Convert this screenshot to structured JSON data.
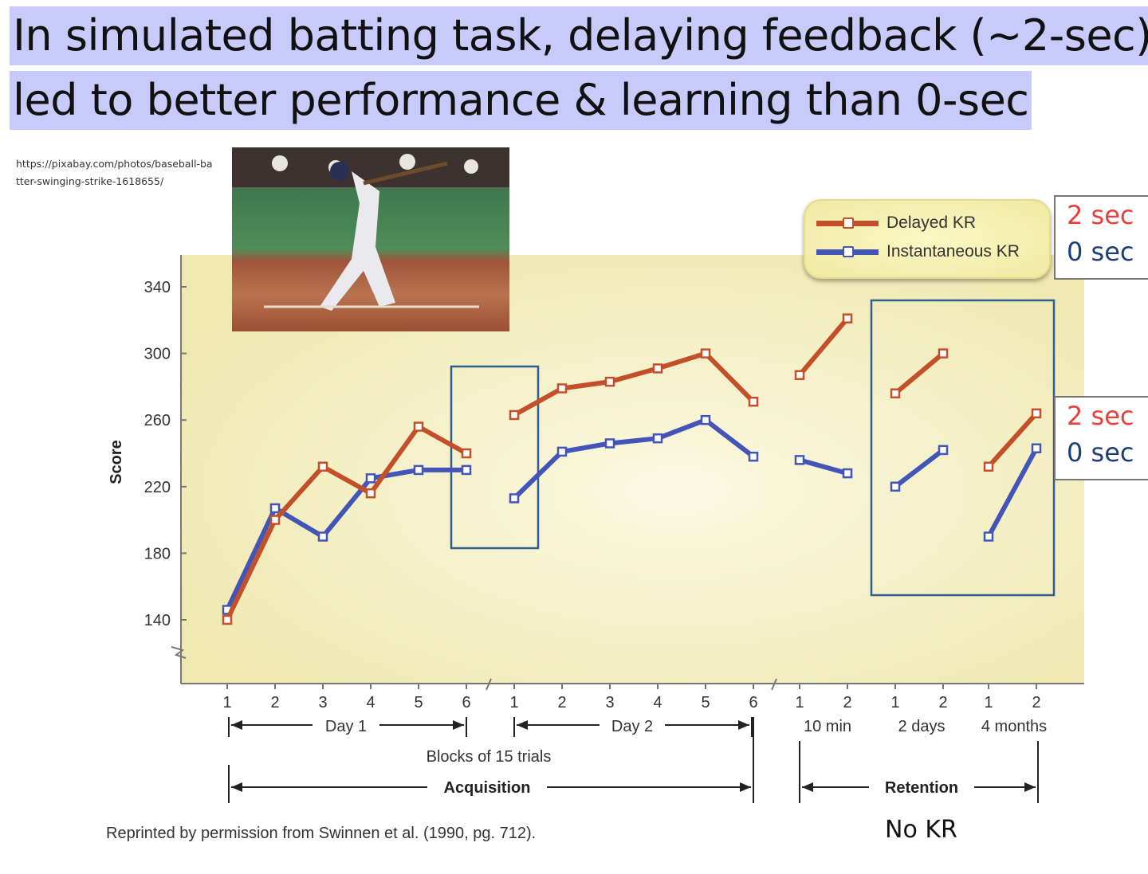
{
  "slide": {
    "title_line1": "In simulated batting task, delaying feedback (~2-sec)",
    "title_line2": "led to better performance & learning than 0-sec",
    "photo_source": "https://pixabay.com/photos/baseball-batter-swinging-strike-1618655/",
    "photo_alt": "baseball batter swinging",
    "annotation_top": {
      "line1": "2 sec",
      "line2": "0 sec"
    },
    "annotation_bottom": {
      "line1": "2 sec",
      "line2": "0 sec"
    },
    "no_kr": "No KR",
    "credit": "Reprinted by permission from Swinnen et al. (1990, pg. 712)."
  },
  "colors": {
    "delayed": "#c4502a",
    "instant": "#4455b8",
    "box": "#2f5f8f",
    "plot_bg": "#f4efbf",
    "title_highlight": "#c8cbfa",
    "annot_red": "#e8403a",
    "annot_blue": "#1f3f73"
  },
  "chart_data": {
    "type": "line",
    "ylabel": "Score",
    "ylim": [
      120,
      360
    ],
    "yticks": [
      140,
      180,
      220,
      260,
      300,
      340
    ],
    "x_tick_labels": [
      "1",
      "2",
      "3",
      "4",
      "5",
      "6",
      "1",
      "2",
      "3",
      "4",
      "5",
      "6",
      "1",
      "2",
      "1",
      "2",
      "1",
      "2"
    ],
    "groups": [
      {
        "label": "Day 1",
        "points": 6
      },
      {
        "label": "Day 2",
        "points": 6
      },
      {
        "label": "10 min",
        "points": 2
      },
      {
        "label": "2 days",
        "points": 2
      },
      {
        "label": "4 months",
        "points": 2
      }
    ],
    "xlabel": "Blocks of 15 trials",
    "phase_labels": {
      "acquisition": "Acquisition",
      "retention": "Retention"
    },
    "legend": {
      "position": "top-right",
      "entries": [
        "Delayed KR",
        "Instantaneous KR"
      ]
    },
    "series": [
      {
        "name": "Delayed KR",
        "values": [
          140,
          200,
          232,
          216,
          256,
          240,
          263,
          279,
          283,
          291,
          300,
          271,
          287,
          321,
          276,
          300,
          232,
          264
        ]
      },
      {
        "name": "Instantaneous KR",
        "values": [
          146,
          207,
          190,
          225,
          230,
          230,
          213,
          241,
          246,
          249,
          260,
          238,
          236,
          228,
          220,
          242,
          190,
          243
        ]
      }
    ],
    "highlight_boxes": [
      "Day 2 block 1",
      "Retention 2 days and 4 months"
    ]
  }
}
